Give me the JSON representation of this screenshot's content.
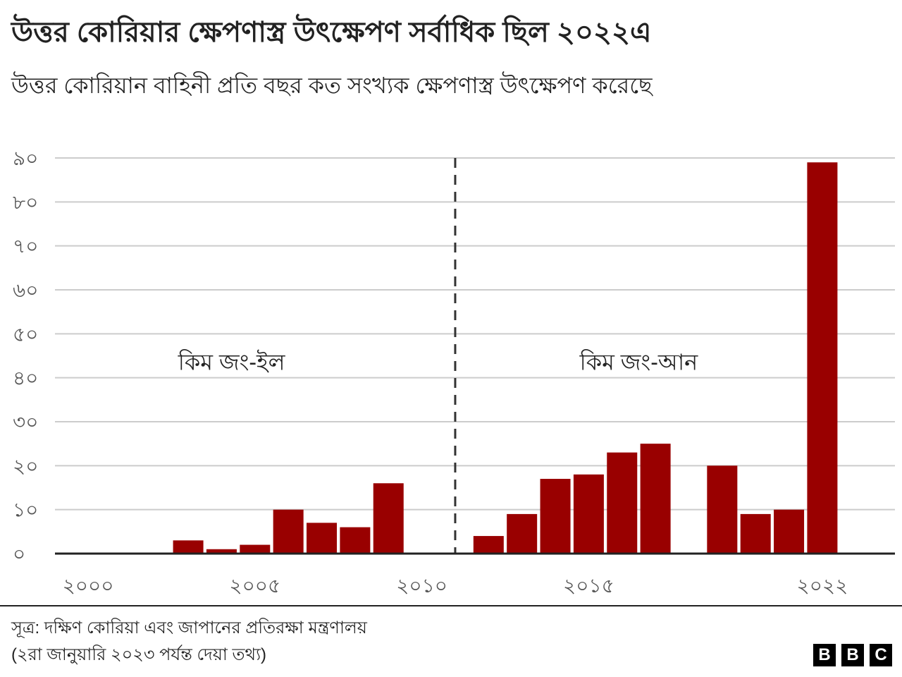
{
  "title": "উত্তর কোরিয়ার ক্ষেপণাস্ত্র উৎক্ষেপণ সর্বাধিক ছিল ২০২২এ",
  "subtitle": "উত্তর কোরিয়ান বাহিনী প্রতি বছর কত সংখ্যক ক্ষেপণাস্ত্র উৎক্ষেপণ করেছে",
  "source_line1": "সূত্র: দক্ষিণ কোরিয়া এবং জাপানের প্রতিরক্ষা মন্ত্রণালয়",
  "source_line2": "(২রা জানুয়ারি ২০২৩ পর্যন্ত দেয়া তথ্য)",
  "logo": [
    "B",
    "B",
    "C"
  ],
  "chart_data": {
    "type": "bar",
    "title": "উত্তর কোরিয়ার ক্ষেপণাস্ত্র উৎক্ষেপণ সর্বাধিক ছিল ২০২২এ",
    "xlabel": "",
    "ylabel": "",
    "categories": [
      2000,
      2001,
      2002,
      2003,
      2004,
      2005,
      2006,
      2007,
      2008,
      2009,
      2010,
      2011,
      2012,
      2013,
      2014,
      2015,
      2016,
      2017,
      2018,
      2019,
      2020,
      2021,
      2022
    ],
    "values": [
      0,
      0,
      0,
      3,
      1,
      2,
      10,
      7,
      6,
      16,
      0,
      0,
      4,
      9,
      17,
      18,
      23,
      25,
      0,
      20,
      9,
      10,
      89
    ],
    "ylim": [
      0,
      90
    ],
    "y_ticks": [
      0,
      10,
      20,
      30,
      40,
      50,
      60,
      70,
      80,
      90
    ],
    "y_tick_labels": [
      "০",
      "১০",
      "২০",
      "৩০",
      "৪০",
      "৫০",
      "৬০",
      "৭০",
      "৮০",
      "৯০"
    ],
    "x_ticks": [
      2000,
      2005,
      2010,
      2015,
      2022
    ],
    "x_tick_labels": [
      "২০০০",
      "২০০৫",
      "২০১০",
      "২০১৫",
      "২০২২"
    ],
    "grid": true,
    "bar_color": "#990000",
    "divider_year": 2011,
    "annotations": [
      {
        "text": "কিম জং-ইল",
        "x": 2004.3,
        "y": 45
      },
      {
        "text": "কিম জং-আন",
        "x": 2016.5,
        "y": 45
      }
    ]
  }
}
